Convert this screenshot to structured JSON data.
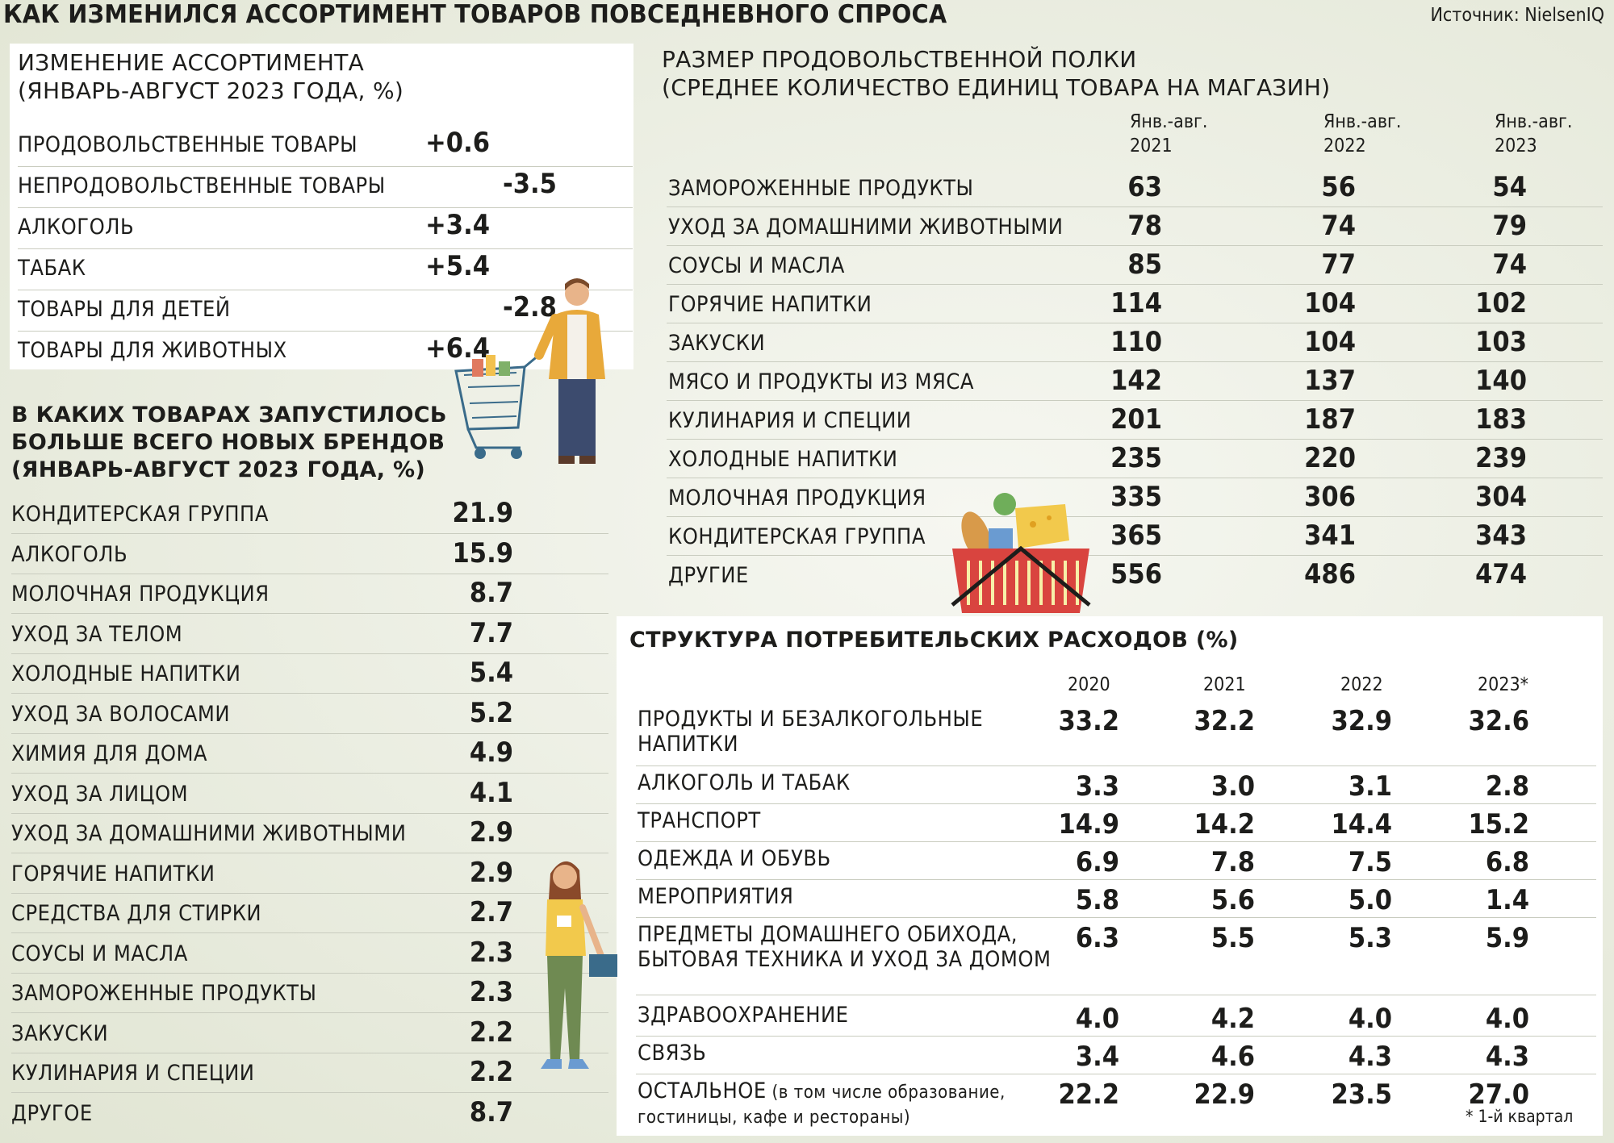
{
  "title": "КАК ИЗМЕНИЛСЯ АССОРТИМЕНТ ТОВАРОВ ПОВСЕДНЕВНОГО СПРОСА",
  "source": "Источник: NielsenIQ",
  "colors": {
    "green": "#5e8a6a",
    "red": "#c7655c",
    "olive": "#9bb04a",
    "teal": "#2f5c6b"
  },
  "chart_data": [
    {
      "type": "bar",
      "title": "ИЗМЕНЕНИЕ АССОРТИМЕНТА (ЯНВАРЬ-АВГУСТ 2023 ГОДА, %)",
      "categories": [
        "ПРОДОВОЛЬСТВЕННЫЕ ТОВАРЫ",
        "НЕПРОДОВОЛЬСТВЕННЫЕ ТОВАРЫ",
        "АЛКОГОЛЬ",
        "ТАБАК",
        "ТОВАРЫ ДЛЯ ДЕТЕЙ",
        "ТОВАРЫ ДЛЯ ЖИВОТНЫХ"
      ],
      "values": [
        0.6,
        -3.5,
        3.4,
        5.4,
        -2.8,
        6.4
      ],
      "labels": [
        "+0.6",
        "-3.5",
        "+3.4",
        "+5.4",
        "-2.8",
        "+6.4"
      ]
    },
    {
      "type": "bar",
      "title": "В КАКИХ ТОВАРАХ ЗАПУСТИЛОСЬ БОЛЬШЕ ВСЕГО НОВЫХ БРЕНДОВ (ЯНВАРЬ-АВГУСТ 2023 ГОДА, %)",
      "categories": [
        "КОНДИТЕРСКАЯ ГРУППА",
        "АЛКОГОЛЬ",
        "МОЛОЧНАЯ ПРОДУКЦИЯ",
        "УХОД ЗА ТЕЛОМ",
        "ХОЛОДНЫЕ НАПИТКИ",
        "УХОД ЗА ВОЛОСАМИ",
        "ХИМИЯ ДЛЯ ДОМА",
        "УХОД ЗА ЛИЦОМ",
        "УХОД ЗА ДОМАШНИМИ ЖИВОТНЫМИ",
        "ГОРЯЧИЕ НАПИТКИ",
        "СРЕДСТВА ДЛЯ СТИРКИ",
        "СОУСЫ И МАСЛА",
        "ЗАМОРОЖЕННЫЕ ПРОДУКТЫ",
        "ЗАКУСКИ",
        "КУЛИНАРИЯ И СПЕЦИИ",
        "ДРУГОЕ"
      ],
      "values": [
        21.9,
        15.9,
        8.7,
        7.7,
        5.4,
        5.2,
        4.9,
        4.1,
        2.9,
        2.9,
        2.7,
        2.3,
        2.3,
        2.2,
        2.2,
        8.7
      ],
      "labels": [
        "21.9",
        "15.9",
        "8.7",
        "7.7",
        "5.4",
        "5.2",
        "4.9",
        "4.1",
        "2.9",
        "2.9",
        "2.7",
        "2.3",
        "2.3",
        "2.2",
        "2.2",
        "8.7"
      ]
    },
    {
      "type": "bar",
      "title": "РАЗМЕР ПРОДОВОЛЬСТВЕННОЙ ПОЛКИ (СРЕДНЕЕ КОЛИЧЕСТВО ЕДИНИЦ ТОВАРА НА МАГАЗИН)",
      "categories": [
        "ЗАМОРОЖЕННЫЕ ПРОДУКТЫ",
        "УХОД ЗА ДОМАШНИМИ ЖИВОТНЫМИ",
        "СОУСЫ И МАСЛА",
        "ГОРЯЧИЕ НАПИТКИ",
        "ЗАКУСКИ",
        "МЯСО И ПРОДУКТЫ ИЗ МЯСА",
        "КУЛИНАРИЯ И СПЕЦИИ",
        "ХОЛОДНЫЕ НАПИТКИ",
        "МОЛОЧНАЯ ПРОДУКЦИЯ",
        "КОНДИТЕРСКАЯ ГРУППА",
        "ДРУГИЕ"
      ],
      "series": [
        {
          "name": "Янв.-авг. 2021",
          "name_line1": "Янв.-авг.",
          "name_line2": "2021",
          "values": [
            63,
            78,
            85,
            114,
            110,
            142,
            201,
            235,
            335,
            365,
            556
          ]
        },
        {
          "name": "Янв.-авг. 2022",
          "name_line1": "Янв.-авг.",
          "name_line2": "2022",
          "values": [
            56,
            74,
            77,
            104,
            104,
            137,
            187,
            220,
            306,
            341,
            486
          ]
        },
        {
          "name": "Янв.-авг. 2023",
          "name_line1": "Янв.-авг.",
          "name_line2": "2023",
          "values": [
            54,
            79,
            74,
            102,
            103,
            140,
            183,
            239,
            304,
            343,
            474
          ]
        }
      ]
    },
    {
      "type": "bar",
      "title": "СТРУКТУРА ПОТРЕБИТЕЛЬСКИХ РАСХОДОВ (%)",
      "categories": [
        "ПРОДУКТЫ И БЕЗАЛКОГОЛЬНЫЕ НАПИТКИ",
        "АЛКОГОЛЬ И ТАБАК",
        "ТРАНСПОРТ",
        "ОДЕЖДА И ОБУВЬ",
        "МЕРОПРИЯТИЯ",
        "ПРЕДМЕТЫ ДОМАШНЕГО ОБИХОДА, БЫТОВАЯ ТЕХНИКА И УХОД ЗА ДОМОМ",
        "ЗДРАВООХРАНЕНИЕ",
        "СВЯЗЬ",
        "ОСТАЛЬНОЕ (в том числе образование, гостиницы, кафе и рестораны)"
      ],
      "series": [
        {
          "name": "2020",
          "values": [
            33.2,
            3.3,
            14.9,
            6.9,
            5.8,
            6.3,
            4.0,
            3.4,
            22.2
          ],
          "labels": [
            "33.2",
            "3.3",
            "14.9",
            "6.9",
            "5.8",
            "6.3",
            "4.0",
            "3.4",
            "22.2"
          ]
        },
        {
          "name": "2021",
          "values": [
            32.2,
            3.0,
            14.2,
            7.8,
            5.6,
            5.5,
            4.2,
            4.6,
            22.9
          ],
          "labels": [
            "32.2",
            "3.0",
            "14.2",
            "7.8",
            "5.6",
            "5.5",
            "4.2",
            "4.6",
            "22.9"
          ]
        },
        {
          "name": "2022",
          "values": [
            32.9,
            3.1,
            14.4,
            7.5,
            5.0,
            5.3,
            4.0,
            4.3,
            23.5
          ],
          "labels": [
            "32.9",
            "3.1",
            "14.4",
            "7.5",
            "5.0",
            "5.3",
            "4.0",
            "4.3",
            "23.5"
          ]
        },
        {
          "name": "2023*",
          "values": [
            32.6,
            2.8,
            15.2,
            6.8,
            1.4,
            5.9,
            4.0,
            4.3,
            27.0
          ],
          "labels": [
            "32.6",
            "2.8",
            "15.2",
            "6.8",
            "1.4",
            "5.9",
            "4.0",
            "4.3",
            "27.0"
          ]
        }
      ],
      "footnote": "* 1-й квартал"
    }
  ],
  "sections": {
    "change_title1": "ИЗМЕНЕНИЕ АССОРТИМЕНТА",
    "change_title2": "(ЯНВАРЬ-АВГУСТ 2023 ГОДА, %)",
    "brands_title1": "В КАКИХ ТОВАРАХ ЗАПУСТИЛОСЬ",
    "brands_title2": "БОЛЬШЕ ВСЕГО НОВЫХ БРЕНДОВ",
    "brands_title3": "(ЯНВАРЬ-АВГУСТ 2023 ГОДА, %)",
    "shelf_title1": "РАЗМЕР ПРОДОВОЛЬСТВЕННОЙ ПОЛКИ",
    "shelf_title2": "(СРЕДНЕЕ КОЛИЧЕСТВО ЕДИНИЦ ТОВАРА НА МАГАЗИН)",
    "spend_title": "СТРУКТУРА ПОТРЕБИТЕЛЬСКИХ РАСХОДОВ (%)",
    "spend_row1_l1": "ПРОДУКТЫ И БЕЗАЛКОГОЛЬНЫЕ",
    "spend_row1_l2": "НАПИТКИ",
    "spend_row6_l1": "ПРЕДМЕТЫ ДОМАШНЕГО ОБИХОДА,",
    "spend_row6_l2": "БЫТОВАЯ ТЕХНИКА И УХОД ЗА ДОМОМ",
    "spend_row9_main": "ОСТАЛЬНОЕ",
    "spend_row9_small1": " (в том числе образование,",
    "spend_row9_l2": "гостиницы, кафе и рестораны)"
  }
}
